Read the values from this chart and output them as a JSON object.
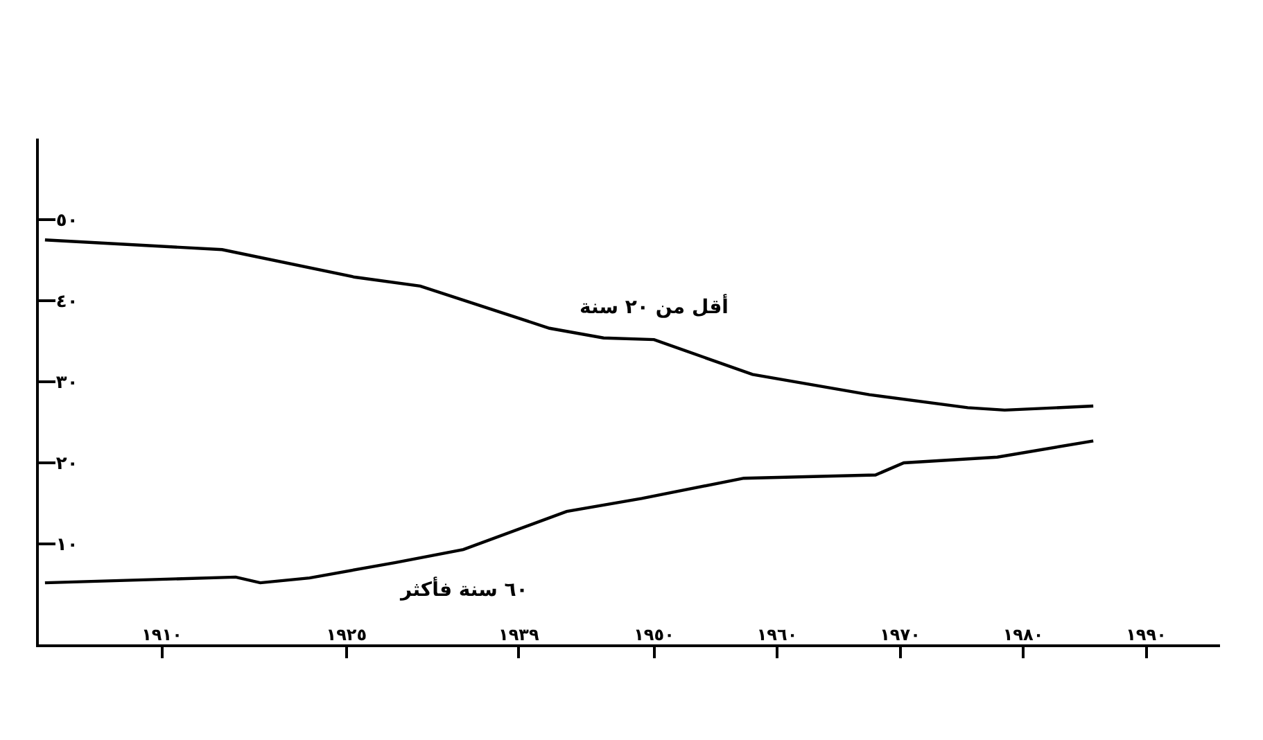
{
  "chart_data": {
    "type": "line",
    "series": [
      {
        "name": "أقل من ٢٠ سنة",
        "color": "#000000",
        "x": [
          1900.5,
          1914.9,
          1925.7,
          1931,
          1941.5,
          1945.9,
          1950,
          1958,
          1967.5,
          1975.5,
          1978.5,
          1985.7
        ],
        "values": [
          47.5,
          46.3,
          42.9,
          41.8,
          36.6,
          35.4,
          35.2,
          30.9,
          28.4,
          26.8,
          26.5,
          27.0
        ]
      },
      {
        "name": "٦٠ سنة فأكثر",
        "color": "#000000",
        "x": [
          1900.5,
          1916,
          1918,
          1922,
          1929,
          1934.5,
          1942.9,
          1949,
          1957.3,
          1968,
          1970.3,
          1977.9,
          1985.7
        ],
        "values": [
          5.2,
          5.9,
          5.2,
          5.8,
          7.7,
          9.3,
          14.0,
          15.6,
          18.1,
          18.5,
          20.0,
          20.7,
          22.7
        ]
      }
    ],
    "xlim": [
      1900,
      1996
    ],
    "xticks": [
      {
        "value": 1910,
        "label": "١٩١٠"
      },
      {
        "value": 1925,
        "label": "١٩٢٥"
      },
      {
        "value": 1939,
        "label": "١٩٣٩"
      },
      {
        "value": 1950,
        "label": "١٩٥٠"
      },
      {
        "value": 1960,
        "label": "١٩٦٠"
      },
      {
        "value": 1970,
        "label": "١٩٧٠"
      },
      {
        "value": 1980,
        "label": "١٩٨٠"
      },
      {
        "value": 1990,
        "label": "١٩٩٠"
      }
    ],
    "ylim": [
      -2.4,
      60
    ],
    "yticks": [
      {
        "value": 10,
        "label": "١٠"
      },
      {
        "value": 20,
        "label": "٢٠"
      },
      {
        "value": 30,
        "label": "٣٠"
      },
      {
        "value": 40,
        "label": "٤٠"
      },
      {
        "value": 50,
        "label": "٥٠"
      }
    ],
    "grid": false,
    "legend": false,
    "marker": "none",
    "line_style": "solid"
  }
}
